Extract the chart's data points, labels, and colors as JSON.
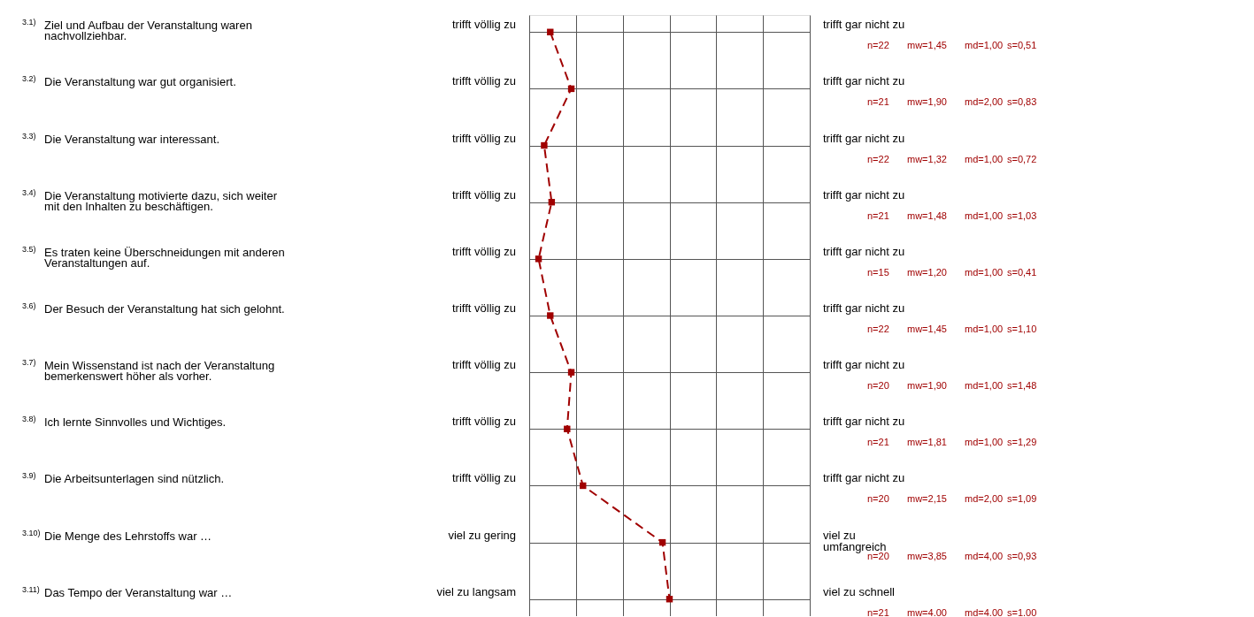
{
  "chart_data": {
    "type": "line",
    "orientation": "horizontal",
    "categories": [
      "Ziel und Aufbau der Veranstaltung waren\nnachvollziehbar.",
      "Die Veranstaltung war gut organisiert.",
      "Die Veranstaltung war interessant.",
      "Die Veranstaltung motivierte dazu, sich weiter\nmit den Inhalten zu beschäftigen.",
      "Es traten keine Überschneidungen mit anderen\nVeranstaltungen auf.",
      "Der Besuch der Veranstaltung hat sich gelohnt.",
      "Mein Wissenstand ist nach der Veranstaltung\nbemerkenswert höher als vorher.",
      "Ich lernte Sinnvolles und Wichtiges.",
      "Die Arbeitsunterlagen sind nützlich.",
      "Die Menge des Lehrstoffs war …",
      "Das Tempo der Veranstaltung war …"
    ],
    "series": [
      {
        "color": "#a00000",
        "values": [
          1.45,
          1.9,
          1.32,
          1.48,
          1.2,
          1.45,
          1.9,
          1.81,
          2.15,
          3.85,
          4.0
        ],
        "value_labels": [
          "mw=1,45",
          "mw=1,90",
          "mw=1,32",
          "mw=1,48",
          "mw=1,20",
          "mw=1,45",
          "mw=1,90",
          "mw=1,81",
          "mw=2,15",
          "mw=3,85",
          "mw=4,00"
        ]
      }
    ],
    "xlim": [
      1,
      7
    ],
    "xticks": [
      {
        "value": 1,
        "label": null
      },
      {
        "value": 2,
        "label": null
      },
      {
        "value": 3,
        "label": null
      },
      {
        "value": 4,
        "label": null
      },
      {
        "value": 5,
        "label": null
      },
      {
        "value": 6,
        "label": null
      },
      {
        "value": 7,
        "label": null
      }
    ],
    "tick_labels": "y",
    "grid": true,
    "marker": "square",
    "line_style": "dashed",
    "annotations": [
      "3.1)",
      "trifft völlig zu",
      "trifft gar nicht zu",
      "n=22",
      "md=1,00",
      "s=0,51",
      "3.2)",
      "trifft völlig zu",
      "trifft gar nicht zu",
      "n=21",
      "md=2,00",
      "s=0,83",
      "3.3)",
      "trifft völlig zu",
      "trifft gar nicht zu",
      "n=22",
      "md=1,00",
      "s=0,72",
      "3.4)",
      "trifft völlig zu",
      "trifft gar nicht zu",
      "n=21",
      "md=1,00",
      "s=1,03",
      "3.5)",
      "trifft völlig zu",
      "trifft gar nicht zu",
      "n=15",
      "md=1,00",
      "s=0,41",
      "3.6)",
      "trifft völlig zu",
      "trifft gar nicht zu",
      "n=22",
      "md=1,00",
      "s=1,10",
      "3.7)",
      "trifft völlig zu",
      "trifft gar nicht zu",
      "n=20",
      "md=1,00",
      "s=1,48",
      "3.8)",
      "trifft völlig zu",
      "trifft gar nicht zu",
      "n=21",
      "md=1,00",
      "s=1,29",
      "3.9)",
      "trifft völlig zu",
      "trifft gar nicht zu",
      "n=20",
      "md=2,00",
      "s=1,09",
      "3.10)",
      "viel zu gering",
      "viel zu\numfangreich",
      "n=20",
      "md=4,00",
      "s=0,93",
      "3.11)",
      "viel zu langsam",
      "viel zu schnell",
      "n=21",
      "md=4,00",
      "s=1,00"
    ]
  }
}
